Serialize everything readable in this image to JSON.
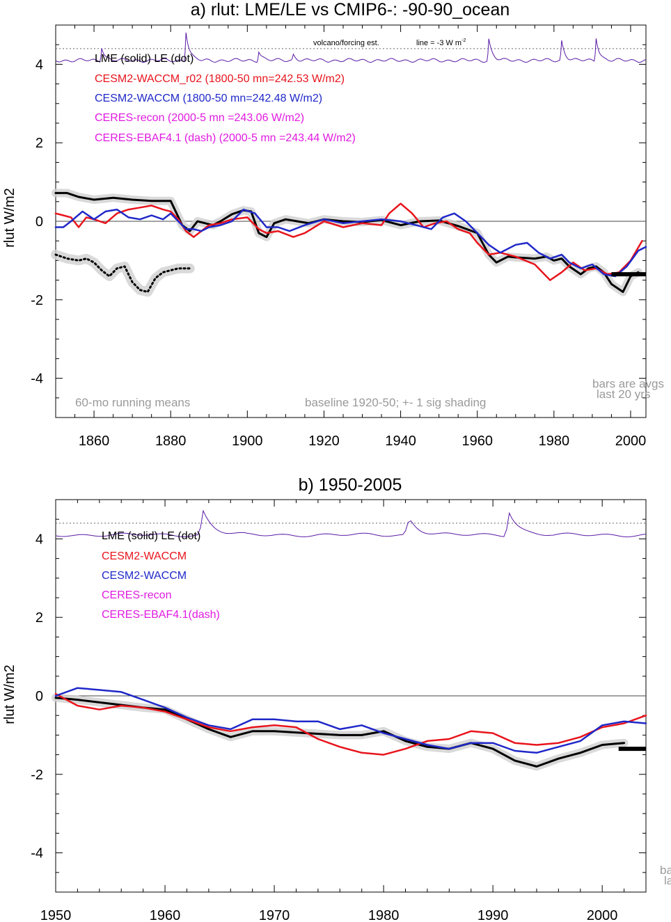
{
  "colors": {
    "lme": "#000000",
    "le_shading": "#cfcfcf",
    "cesm2_waccm_r02": "#e8141c",
    "cesm2_waccm": "#1f28c8",
    "ceres": "#e01ae0",
    "volcano": "#5a1aa6",
    "note": "#9a9a9a",
    "zero_line": "#444444"
  },
  "panel_a": {
    "title": "a) rlut: LME/LE vs CMIP6-: -90-90_ocean",
    "ylabel": "rlut W/m2",
    "legend": {
      "lme_le": "LME (solid)   LE (dot)",
      "cesm2_waccm_r02": "CESM2-WACCM_r02 (1800-50 mn=242.53 W/m2)",
      "cesm2_waccm": "CESM2-WACCM (1800-50 mn=242.48 W/m2)",
      "ceres_recon": "CERES-recon (2000-5 mn =243.06 W/m2)",
      "ceres_ebaf": "CERES-EBAF4.1 (dash) (2000-5 mn =243.44 W/m2)"
    },
    "volcano_label": "volcano/forcing est.",
    "line_label": "line = -3 W m",
    "line_label_sup": "-2",
    "note_running": "60-mo running means",
    "note_baseline": "baseline 1920-50; +- 1 sig shading",
    "note_bars_1": "bars are avgs",
    "note_bars_2": "last 20 yrs"
  },
  "panel_b": {
    "title": "b) 1950-2005",
    "ylabel": "rlut W/m2",
    "legend": {
      "lme_le": "LME (solid)      LE (dot)",
      "cesm2_waccm_r02": "CESM2-WACCM",
      "cesm2_waccm": "CESM2-WACCM",
      "ceres_recon": "CERES-recon",
      "ceres_ebaf": "CERES-EBAF4.1(dash)"
    },
    "note_bars_1": "ba",
    "note_bars_2": "la"
  },
  "chart_data": [
    {
      "type": "line",
      "title": "a) rlut: LME/LE vs CMIP6-: -90-90_ocean",
      "xlabel": "",
      "ylabel": "rlut W/m2",
      "xlim": [
        1850,
        2004
      ],
      "ylim": [
        -5,
        5
      ],
      "xticks": [
        1860,
        1880,
        1900,
        1920,
        1940,
        1960,
        1980,
        2000
      ],
      "yticks": [
        -4,
        -2,
        0,
        2,
        4
      ],
      "series": [
        {
          "name": "LME (solid)",
          "color": "#000000",
          "width": 3,
          "x": [
            1850,
            1853,
            1856,
            1860,
            1865,
            1870,
            1875,
            1880,
            1883,
            1885,
            1887,
            1889,
            1891,
            1893,
            1896,
            1899,
            1901,
            1903,
            1905,
            1907,
            1910,
            1913,
            1916,
            1920,
            1925,
            1930,
            1935,
            1940,
            1945,
            1950,
            1955,
            1960,
            1963,
            1965,
            1968,
            1970,
            1975,
            1978,
            1980,
            1982,
            1984,
            1987,
            1989,
            1991,
            1993,
            1995,
            1998,
            2000,
            2002
          ],
          "y": [
            0.72,
            0.72,
            0.62,
            0.55,
            0.6,
            0.55,
            0.52,
            0.52,
            -0.1,
            -0.25,
            0.0,
            -0.05,
            -0.1,
            0.0,
            0.18,
            0.28,
            0.25,
            -0.3,
            -0.4,
            -0.05,
            0.05,
            0.0,
            -0.05,
            0.05,
            0.0,
            -0.02,
            0.03,
            -0.1,
            0.0,
            0.02,
            -0.12,
            -0.3,
            -0.85,
            -1.05,
            -0.9,
            -0.92,
            -0.95,
            -0.9,
            -1.0,
            -0.95,
            -1.15,
            -1.35,
            -1.2,
            -1.15,
            -1.3,
            -1.6,
            -1.8,
            -1.4,
            -1.3
          ]
        },
        {
          "name": "LE (dot)",
          "color": "#000000",
          "width": 3,
          "dash": "2,4",
          "x": [
            1850,
            1853,
            1856,
            1858,
            1860,
            1862,
            1864,
            1866,
            1868,
            1870,
            1872,
            1874,
            1876,
            1878,
            1880,
            1882,
            1885
          ],
          "y": [
            -0.85,
            -0.95,
            -1.0,
            -0.95,
            -1.05,
            -1.25,
            -1.4,
            -1.2,
            -1.15,
            -1.55,
            -1.75,
            -1.8,
            -1.45,
            -1.3,
            -1.25,
            -1.2,
            -1.2
          ]
        },
        {
          "name": "CESM2-WACCM_r02",
          "color": "#e8141c",
          "width": 2.5,
          "x": [
            1850,
            1852,
            1854,
            1856,
            1858,
            1860,
            1863,
            1866,
            1869,
            1872,
            1875,
            1878,
            1880,
            1882,
            1884,
            1886,
            1888,
            1890,
            1893,
            1896,
            1900,
            1903,
            1905,
            1908,
            1912,
            1915,
            1920,
            1925,
            1930,
            1935,
            1937,
            1940,
            1943,
            1946,
            1949,
            1952,
            1955,
            1958,
            1960,
            1963,
            1966,
            1970,
            1975,
            1979,
            1982,
            1985,
            1988,
            1991,
            1994,
            1997,
            2000,
            2003
          ],
          "y": [
            0.2,
            0.15,
            0.1,
            -0.15,
            0.1,
            0.05,
            -0.05,
            0.2,
            0.3,
            0.35,
            0.4,
            0.3,
            0.25,
            0.05,
            -0.25,
            -0.4,
            -0.25,
            -0.1,
            -0.05,
            0.05,
            0.1,
            -0.2,
            -0.3,
            -0.25,
            -0.4,
            -0.3,
            0.0,
            -0.15,
            -0.05,
            -0.1,
            0.2,
            0.45,
            0.2,
            -0.15,
            -0.05,
            0.0,
            -0.2,
            -0.3,
            -0.55,
            -0.85,
            -0.8,
            -0.9,
            -1.1,
            -1.5,
            -1.3,
            -1.05,
            -1.25,
            -1.2,
            -1.35,
            -1.3,
            -1.0,
            -0.5
          ]
        },
        {
          "name": "CESM2-WACCM",
          "color": "#1f28c8",
          "width": 2.5,
          "x": [
            1850,
            1852,
            1854,
            1857,
            1860,
            1863,
            1866,
            1869,
            1872,
            1875,
            1878,
            1880,
            1882,
            1884,
            1886,
            1888,
            1890,
            1893,
            1896,
            1899,
            1902,
            1905,
            1908,
            1911,
            1915,
            1920,
            1925,
            1930,
            1935,
            1940,
            1944,
            1948,
            1951,
            1954,
            1957,
            1960,
            1963,
            1966,
            1970,
            1973,
            1976,
            1979,
            1982,
            1984,
            1987,
            1990,
            1993,
            1996,
            1999,
            2002,
            2004
          ],
          "y": [
            -0.15,
            -0.15,
            0.0,
            0.25,
            0.05,
            0.25,
            0.3,
            0.1,
            0.05,
            0.15,
            0.05,
            0.2,
            0.0,
            -0.2,
            -0.2,
            -0.25,
            -0.15,
            -0.1,
            0.0,
            0.3,
            0.2,
            -0.15,
            -0.15,
            -0.25,
            -0.1,
            0.05,
            -0.05,
            0.0,
            0.05,
            0.0,
            -0.1,
            -0.2,
            0.1,
            0.2,
            0.0,
            -0.3,
            -0.6,
            -0.8,
            -0.6,
            -0.55,
            -0.8,
            -0.95,
            -0.85,
            -1.05,
            -1.2,
            -1.1,
            -1.35,
            -1.4,
            -1.15,
            -0.75,
            -0.65
          ]
        }
      ],
      "bars": [
        {
          "name": "last 20 yrs avg",
          "x": [
            1995,
            2004
          ],
          "y": -1.35
        }
      ],
      "volcano_baseline": 4.4,
      "volcano_peaks": [
        {
          "x": 1862,
          "y": 4.45
        },
        {
          "x": 1884,
          "y": 4.85
        },
        {
          "x": 1903,
          "y": 4.35
        },
        {
          "x": 1912,
          "y": 4.25
        },
        {
          "x": 1963,
          "y": 4.65
        },
        {
          "x": 1982,
          "y": 4.6
        },
        {
          "x": 1991,
          "y": 4.7
        }
      ]
    },
    {
      "type": "line",
      "title": "b) 1950-2005",
      "xlabel": "",
      "ylabel": "rlut W/m2",
      "xlim": [
        1950,
        2004
      ],
      "ylim": [
        -5,
        5
      ],
      "xticks": [
        1950,
        1960,
        1970,
        1980,
        1990,
        2000
      ],
      "yticks": [
        -4,
        -2,
        0,
        2,
        4
      ],
      "series": [
        {
          "name": "LME (solid)",
          "color": "#000000",
          "width": 3,
          "x": [
            1950,
            1952,
            1955,
            1958,
            1960,
            1962,
            1964,
            1966,
            1968,
            1970,
            1973,
            1976,
            1978,
            1980,
            1982,
            1984,
            1986,
            1988,
            1990,
            1992,
            1994,
            1996,
            1998,
            2000,
            2002
          ],
          "y": [
            -0.05,
            -0.1,
            -0.2,
            -0.3,
            -0.35,
            -0.6,
            -0.85,
            -1.05,
            -0.9,
            -0.9,
            -0.95,
            -1.0,
            -1.0,
            -0.9,
            -1.15,
            -1.3,
            -1.35,
            -1.2,
            -1.35,
            -1.65,
            -1.8,
            -1.6,
            -1.45,
            -1.25,
            -1.2
          ]
        },
        {
          "name": "CESM2-WACCM_r02",
          "color": "#e8141c",
          "width": 2.5,
          "x": [
            1950,
            1952,
            1954,
            1956,
            1958,
            1960,
            1962,
            1964,
            1966,
            1968,
            1970,
            1972,
            1974,
            1976,
            1978,
            1980,
            1982,
            1984,
            1986,
            1988,
            1990,
            1992,
            1994,
            1996,
            1998,
            2000,
            2002,
            2004
          ],
          "y": [
            0.05,
            -0.25,
            -0.35,
            -0.25,
            -0.3,
            -0.4,
            -0.6,
            -0.8,
            -0.9,
            -0.8,
            -0.75,
            -0.8,
            -1.1,
            -1.3,
            -1.45,
            -1.5,
            -1.35,
            -1.15,
            -1.1,
            -0.9,
            -0.95,
            -1.2,
            -1.25,
            -1.2,
            -1.05,
            -0.8,
            -0.7,
            -0.5
          ]
        },
        {
          "name": "CESM2-WACCM",
          "color": "#1f28c8",
          "width": 2.5,
          "x": [
            1950,
            1952,
            1954,
            1956,
            1958,
            1960,
            1962,
            1964,
            1966,
            1968,
            1970,
            1972,
            1974,
            1976,
            1978,
            1980,
            1982,
            1984,
            1986,
            1988,
            1990,
            1992,
            1994,
            1996,
            1998,
            2000,
            2002,
            2004
          ],
          "y": [
            0.0,
            0.2,
            0.15,
            0.1,
            -0.1,
            -0.3,
            -0.55,
            -0.75,
            -0.85,
            -0.6,
            -0.6,
            -0.65,
            -0.65,
            -0.85,
            -0.75,
            -0.95,
            -1.1,
            -1.25,
            -1.35,
            -1.2,
            -1.2,
            -1.4,
            -1.45,
            -1.3,
            -1.15,
            -0.75,
            -0.65,
            -0.7
          ]
        }
      ],
      "bars": [
        {
          "name": "last 20 yrs avg",
          "x": [
            2001.5,
            2004
          ],
          "y": -1.35
        }
      ],
      "volcano_baseline": 4.4,
      "volcano_peaks": [
        {
          "x": 1963.5,
          "y": 4.7
        },
        {
          "x": 1982.3,
          "y": 4.55
        },
        {
          "x": 1991.5,
          "y": 4.7
        }
      ]
    }
  ]
}
